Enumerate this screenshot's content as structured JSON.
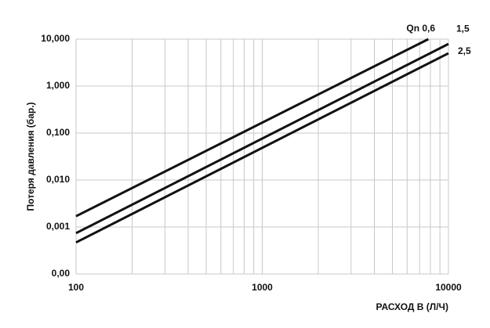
{
  "chart_data": {
    "type": "line",
    "xscale": "log",
    "yscale": "log",
    "grid": true,
    "minor_grid_x": true,
    "xlabel": "РАСХОД В (Л/Ч)",
    "ylabel": "Потеря давления (бар.)",
    "xlim": [
      100,
      10000
    ],
    "xticks": [
      100,
      1000,
      10000
    ],
    "ylim": [
      0.0001,
      10
    ],
    "yticks": [
      {
        "value": 0.0001,
        "label": "0,00"
      },
      {
        "value": 0.001,
        "label": "0,001"
      },
      {
        "value": 0.01,
        "label": "0,010"
      },
      {
        "value": 0.1,
        "label": "0,100"
      },
      {
        "value": 1,
        "label": "1,000"
      },
      {
        "value": 10,
        "label": "10,000"
      }
    ],
    "x": [
      100,
      7800
    ],
    "series": [
      {
        "name": "Qn 0,6",
        "color": "#111111",
        "x": [
          100,
          7800
        ],
        "values": [
          0.0017,
          10
        ]
      },
      {
        "name": "1,5",
        "color": "#111111",
        "x": [
          100,
          10000
        ],
        "values": [
          0.00074,
          7.9
        ]
      },
      {
        "name": "2,5",
        "color": "#111111",
        "x": [
          100,
          10000
        ],
        "values": [
          0.00047,
          5.0
        ]
      }
    ]
  }
}
